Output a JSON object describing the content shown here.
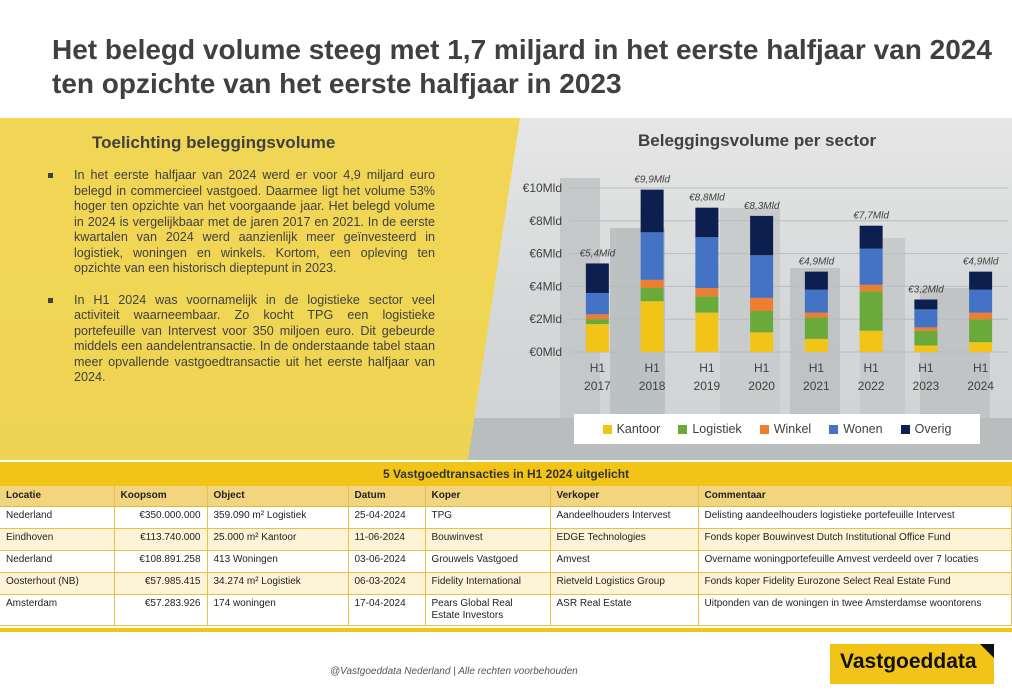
{
  "title": "Het belegd volume steeg met 1,7 miljard in het eerste halfjaar van 2024 ten opzichte van het eerste halfjaar in 2023",
  "left": {
    "heading": "Toelichting beleggingsvolume",
    "paragraphs": [
      "In het eerste halfjaar van 2024 werd er voor 4,9 miljard euro belegd in commercieel vastgoed. Daarmee ligt het volume 53% hoger ten opzichte van het voorgaande jaar. Het belegd volume in 2024 is vergelijkbaar met de jaren 2017 en 2021. In de eerste kwartalen van 2024 werd aanzienlijk meer geïnvesteerd in logistiek, woningen en winkels. Kortom, een opleving ten opzichte van een historisch dieptepunt in 2023.",
      "In H1 2024 was voornamelijk in de logistieke sector veel activiteit waarneembaar. Zo kocht TPG een logistieke portefeuille van Intervest voor 350 miljoen euro. Dit gebeurde middels een aandelentransactie. In de onderstaande tabel staan meer opvallende vastgoedtransactie uit het eerste halfjaar van 2024."
    ]
  },
  "chart_data": {
    "type": "bar",
    "title": "Beleggingsvolume per sector",
    "stacked": true,
    "categories": [
      "H1 2017",
      "H1 2018",
      "H1 2019",
      "H1 2020",
      "H1 2021",
      "H1 2022",
      "H1 2023",
      "H1 2024"
    ],
    "tick_top": [
      "H1",
      "H1",
      "H1",
      "H1",
      "H1",
      "H1",
      "H1",
      "H1"
    ],
    "tick_bottom": [
      "2017",
      "2018",
      "2019",
      "2020",
      "2021",
      "2022",
      "2023",
      "2024"
    ],
    "yticks": [
      "€0Mld",
      "€2Mld",
      "€4Mld",
      "€6Mld",
      "€8Mld",
      "€10Mld"
    ],
    "ylim": [
      0,
      10
    ],
    "totals": [
      5.4,
      9.9,
      8.8,
      8.3,
      4.9,
      7.7,
      3.2,
      4.9
    ],
    "total_labels": [
      "€5,4Mld",
      "€9,9Mld",
      "€8,8Mld",
      "€8,3Mld",
      "€4,9Mld",
      "€7,7Mld",
      "€3,2Mld",
      "€4,9Mld"
    ],
    "series": [
      {
        "name": "Kantoor",
        "color": "#f2c417",
        "values": [
          1.7,
          3.1,
          2.4,
          1.2,
          0.8,
          1.3,
          0.4,
          0.6
        ]
      },
      {
        "name": "Logistiek",
        "color": "#6aaa3a",
        "values": [
          0.3,
          0.8,
          1.0,
          1.3,
          1.3,
          2.4,
          0.9,
          1.4
        ]
      },
      {
        "name": "Winkel",
        "color": "#ed7d31",
        "values": [
          0.3,
          0.5,
          0.5,
          0.8,
          0.3,
          0.4,
          0.2,
          0.4
        ]
      },
      {
        "name": "Wonen",
        "color": "#4472c4",
        "values": [
          1.3,
          2.9,
          3.1,
          2.6,
          1.4,
          2.2,
          1.1,
          1.4
        ]
      },
      {
        "name": "Overig",
        "color": "#0d1f4e",
        "values": [
          1.8,
          2.6,
          1.8,
          2.4,
          1.1,
          1.4,
          0.6,
          1.1
        ]
      }
    ],
    "legend": "bottom"
  },
  "table": {
    "title": "5 Vastgoedtransacties in H1 2024 uitgelicht",
    "headers": [
      "Locatie",
      "Koopsom",
      "Object",
      "Datum",
      "Koper",
      "Verkoper",
      "Commentaar"
    ],
    "rows": [
      [
        "Nederland",
        "€350.000.000",
        "359.090 m² Logistiek",
        "25-04-2024",
        "TPG",
        "Aandeelhouders Intervest",
        "Delisting aandeelhouders logistieke portefeuille Intervest"
      ],
      [
        "Eindhoven",
        "€113.740.000",
        "25.000 m² Kantoor",
        "11-06-2024",
        "Bouwinvest",
        "EDGE Technologies",
        "Fonds koper Bouwinvest Dutch Institutional Office Fund"
      ],
      [
        "Nederland",
        "€108.891.258",
        "413 Woningen",
        "03-06-2024",
        "Grouwels Vastgoed",
        "Amvest",
        "Overname woningportefeuille Amvest verdeeld over 7 locaties"
      ],
      [
        "Oosterhout (NB)",
        "€57.985.415",
        "34.274 m² Logistiek",
        "06-03-2024",
        "Fidelity International",
        "Rietveld Logistics Group",
        "Fonds koper Fidelity Eurozone Select Real Estate Fund"
      ],
      [
        "Amsterdam",
        "€57.283.926",
        "174 woningen",
        "17-04-2024",
        "Pears Global Real Estate Investors",
        "ASR Real Estate",
        "Uitponden van de woningen in twee Amsterdamse woontorens"
      ]
    ]
  },
  "footer": "@Vastgoeddata Nederland | Alle rechten voorbehouden",
  "logo": "Vastgoeddata"
}
